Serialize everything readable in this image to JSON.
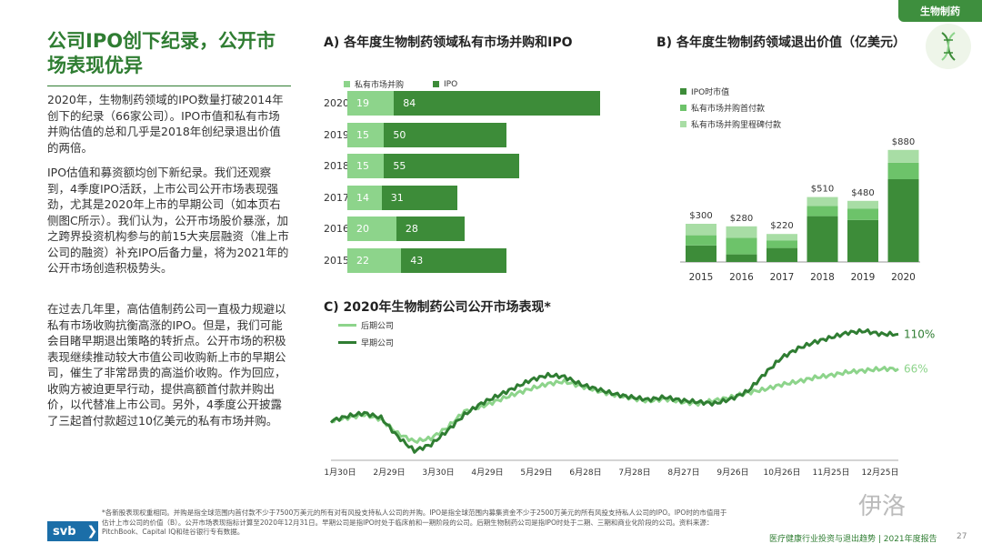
{
  "header": {
    "tag": "生物制药"
  },
  "left": {
    "title": "公司IPO创下纪录，公开市场表现优异",
    "paragraphs": [
      "2020年，生物制药领域的IPO数量打破2014年创下的纪录（66家公司）。IPO市值和私有市场并购估值的总和几乎是2018年创纪录退出价值的两倍。",
      "IPO估值和募资额均创下新纪录。我们还观察到，4季度IPO活跃，上市公司公开市场表现强劲，尤其是2020年上市的早期公司（如本页右侧图C所示）。我们认为，公开市场股价暴涨，加之跨界投资机构参与的前15大夹层融资（准上市公司的融资）补充IPO后备力量，将为2021年的公开市场创造积极势头。",
      "在过去几年里，高估值制药公司一直极力规避以私有市场收购抗衡高涨的IPO。但是，我们可能会目睹早期退出策略的转折点。公开市场的积极表现继续推动较大市值公司收购新上市的早期公司，催生了非常昂贵的高溢价收购。作为回应，收购方被迫更早行动，提供高额首付款并购出价，以代替准上市公司。另外，4季度公开披露了三起首付款超过10亿美元的私有市场并购。"
    ]
  },
  "chart_data": [
    {
      "id": "A",
      "type": "bar",
      "orientation": "horizontal",
      "stacked": true,
      "title": "A) 各年度生物制药领域私有市场并购和IPO",
      "categories": [
        "2020",
        "2019",
        "2018",
        "2017",
        "2016",
        "2015"
      ],
      "series": [
        {
          "name": "私有市场并购",
          "color": "#8dd48b",
          "values": [
            19,
            15,
            15,
            14,
            20,
            22
          ]
        },
        {
          "name": "IPO",
          "color": "#3d8c39",
          "values": [
            84,
            50,
            55,
            31,
            28,
            43
          ]
        }
      ],
      "xlim": [
        0,
        115
      ]
    },
    {
      "id": "B",
      "type": "bar",
      "stacked": true,
      "title": "B) 各年度生物制药领域退出价值（亿美元）",
      "categories": [
        "2015",
        "2016",
        "2017",
        "2018",
        "2019",
        "2020"
      ],
      "series": [
        {
          "name": "IPO时市值",
          "color": "#3d8c39",
          "values": [
            130,
            60,
            110,
            360,
            330,
            650
          ]
        },
        {
          "name": "私有市场并购首付款",
          "color": "#6dc36a",
          "values": [
            80,
            130,
            60,
            80,
            90,
            130
          ]
        },
        {
          "name": "私有市场并购里程碑付款",
          "color": "#a8dda5",
          "values": [
            90,
            90,
            50,
            70,
            60,
            100
          ]
        }
      ],
      "totals": [
        "$300",
        "$280",
        "$220",
        "$510",
        "$480",
        "$880"
      ],
      "ylim": [
        0,
        1000
      ]
    },
    {
      "id": "C",
      "type": "line",
      "title": "C) 2020年生物制药公司公开市场表现*",
      "x_ticks": [
        "1月30日",
        "2月29日",
        "3月30日",
        "4月29日",
        "5月29日",
        "6月28日",
        "7月28日",
        "8月27日",
        "9月26日",
        "10月26日",
        "11月25日",
        "12月25日"
      ],
      "ylim": [
        -50,
        130
      ],
      "series": [
        {
          "name": "后期公司",
          "color": "#8dd48b",
          "end_label": "66%",
          "values": [
            0,
            4,
            8,
            2,
            -16,
            -26,
            -22,
            -8,
            12,
            18,
            26,
            34,
            41,
            47,
            50,
            44,
            38,
            33,
            29,
            25,
            28,
            24,
            22,
            26,
            30,
            36,
            40,
            46,
            50,
            55,
            58,
            62,
            64,
            66,
            66
          ]
        },
        {
          "name": "早期公司",
          "color": "#2f7d32",
          "end_label": "110%",
          "values": [
            0,
            6,
            10,
            4,
            -20,
            -38,
            -30,
            -12,
            8,
            22,
            32,
            42,
            52,
            58,
            56,
            46,
            40,
            34,
            30,
            27,
            30,
            26,
            24,
            22,
            28,
            38,
            60,
            80,
            92,
            100,
            106,
            112,
            114,
            110,
            110
          ]
        }
      ]
    }
  ],
  "footer": {
    "footnote": "*各新股表现权重相同。并购是指全球范围内首付款不少于7500万美元的所有对有风投支持私人公司的并购。IPO是指全球范围内募集资金不少于2500万美元的所有风投支持私人公司的IPO。IPO时的市值用于估计上市公司的价值（B）。公开市场表现指标计算至2020年12月31日。早期公司是指IPO时处于临床前和一期阶段的公司。后期生物制药公司是指IPO时处于二期、三期和商业化阶段的公司。资料来源：PitchBook、Capital IQ和硅谷银行专有数据。",
    "brand": "svb",
    "report": "医疗健康行业投资与退出趋势 | 2021年度报告",
    "page": "27",
    "watermark": "伊洛"
  }
}
